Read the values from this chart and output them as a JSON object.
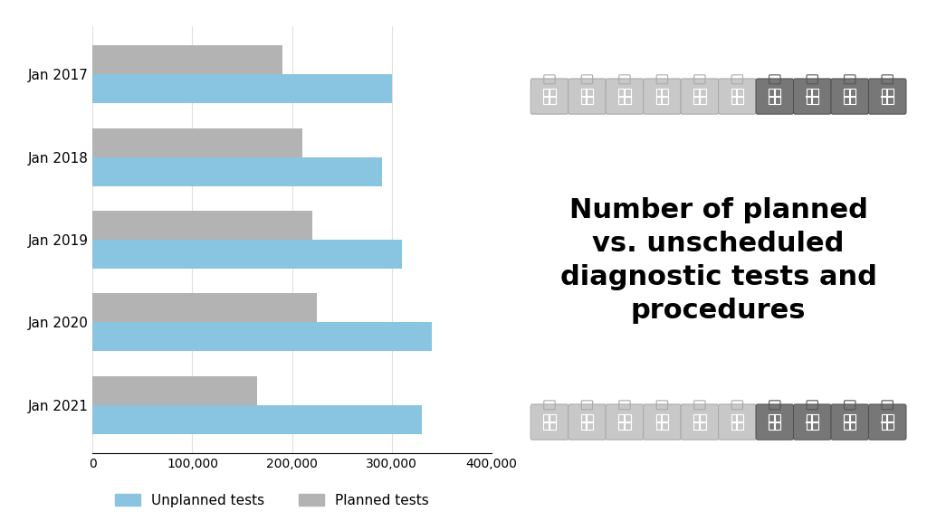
{
  "categories": [
    "Jan 2017",
    "Jan 2018",
    "Jan 2019",
    "Jan 2020",
    "Jan 2021"
  ],
  "unplanned": [
    300000,
    290000,
    310000,
    340000,
    330000
  ],
  "planned": [
    190000,
    210000,
    220000,
    225000,
    165000
  ],
  "unplanned_color": "#89c4e1",
  "planned_color": "#b3b3b3",
  "background_color": "#ffffff",
  "xlim": [
    0,
    400000
  ],
  "xticks": [
    0,
    100000,
    200000,
    300000,
    400000
  ],
  "xtick_labels": [
    "0",
    "100,000",
    "200,000",
    "300,000",
    "400,000"
  ],
  "legend_unplanned": "Unplanned tests",
  "legend_planned": "Planned tests",
  "title": "Number of planned\nvs. unscheduled\ndiagnostic tests and\nprocedures",
  "title_fontsize": 22,
  "bar_height": 0.35,
  "grid_color": "#e0e0e0",
  "legend_fontsize": 11,
  "ytick_fontsize": 11,
  "xtick_fontsize": 10,
  "n_icons": 10,
  "icon_split": 6,
  "icon_light_face": "#c8c8c8",
  "icon_light_edge": "#aaaaaa",
  "icon_dark_face": "#777777",
  "icon_dark_edge": "#555555"
}
